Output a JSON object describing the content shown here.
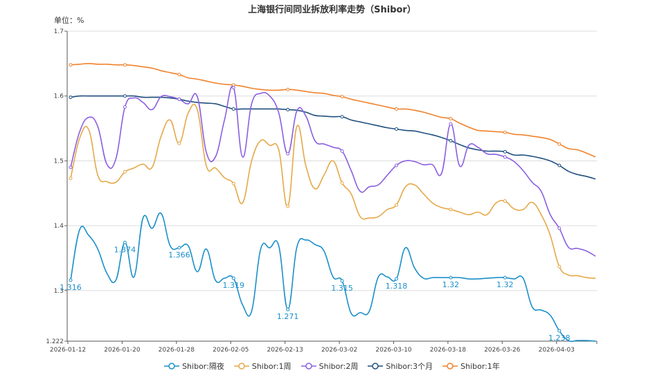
{
  "chart_data": {
    "type": "line",
    "title": "上海银行间同业拆放利率走势（Shibor）",
    "unit_label": "单位：%",
    "xlabel": "",
    "ylabel": "",
    "ylim": [
      1.222,
      1.7
    ],
    "y_ticks": [
      "1.222",
      "1.3",
      "1.4",
      "1.5",
      "1.6",
      "1.7"
    ],
    "grid": true,
    "legend_position": "bottom",
    "x": [
      "2026-01-12",
      "2026-01-13",
      "2026-01-14",
      "2026-01-15",
      "2026-01-16",
      "2026-01-19",
      "2026-01-20",
      "2026-01-21",
      "2026-01-22",
      "2026-01-23",
      "2026-01-26",
      "2026-01-27",
      "2026-01-28",
      "2026-01-29",
      "2026-01-30",
      "2026-02-02",
      "2026-02-03",
      "2026-02-04",
      "2026-02-05",
      "2026-02-06",
      "2026-02-09",
      "2026-02-10",
      "2026-02-11",
      "2026-02-12",
      "2026-02-13",
      "2026-02-14",
      "2026-02-24",
      "2026-02-25",
      "2026-02-26",
      "2026-02-27",
      "2026-03-02",
      "2026-03-03",
      "2026-03-04",
      "2026-03-05",
      "2026-03-06",
      "2026-03-09",
      "2026-03-10",
      "2026-03-11",
      "2026-03-12",
      "2026-03-13",
      "2026-03-16",
      "2026-03-17",
      "2026-03-18",
      "2026-03-19",
      "2026-03-20",
      "2026-03-23",
      "2026-03-24",
      "2026-03-25",
      "2026-03-26",
      "2026-03-27",
      "2026-03-30",
      "2026-03-31",
      "2026-04-01",
      "2026-04-02",
      "2026-04-03",
      "2026-04-07",
      "2026-04-08",
      "2026-04-09",
      "2026-04-10"
    ],
    "x_tick_labels": [
      "2026-01-12",
      "2026-01-20",
      "2026-01-28",
      "2026-02-05",
      "2026-02-13",
      "2026-03-02",
      "2026-03-10",
      "2026-03-18",
      "2026-03-26",
      "2026-04-03"
    ],
    "x_tick_every": 6,
    "series": [
      {
        "name": "Shibor:隔夜",
        "color": "#1a8fc9",
        "show_labels": true,
        "values": [
          1.316,
          1.394,
          1.385,
          1.364,
          1.327,
          1.316,
          1.374,
          1.321,
          1.412,
          1.396,
          1.419,
          1.369,
          1.366,
          1.369,
          1.329,
          1.364,
          1.316,
          1.319,
          1.319,
          1.278,
          1.268,
          1.364,
          1.366,
          1.369,
          1.271,
          1.367,
          1.378,
          1.371,
          1.361,
          1.321,
          1.315,
          1.265,
          1.266,
          1.268,
          1.321,
          1.321,
          1.318,
          1.366,
          1.335,
          1.319,
          1.32,
          1.32,
          1.32,
          1.32,
          1.318,
          1.318,
          1.319,
          1.32,
          1.32,
          1.318,
          1.319,
          1.275,
          1.27,
          1.262,
          1.238,
          1.223,
          1.223,
          1.223,
          1.222
        ]
      },
      {
        "name": "Shibor:1周",
        "color": "#e4a847",
        "values": [
          1.473,
          1.535,
          1.548,
          1.478,
          1.468,
          1.467,
          1.483,
          1.489,
          1.495,
          1.49,
          1.538,
          1.563,
          1.527,
          1.574,
          1.579,
          1.492,
          1.489,
          1.474,
          1.465,
          1.435,
          1.5,
          1.531,
          1.524,
          1.517,
          1.43,
          1.553,
          1.492,
          1.457,
          1.478,
          1.5,
          1.466,
          1.449,
          1.414,
          1.412,
          1.414,
          1.425,
          1.432,
          1.46,
          1.463,
          1.449,
          1.435,
          1.428,
          1.425,
          1.421,
          1.417,
          1.421,
          1.417,
          1.435,
          1.438,
          1.426,
          1.425,
          1.436,
          1.417,
          1.385,
          1.337,
          1.324,
          1.323,
          1.32,
          1.319
        ]
      },
      {
        "name": "Shibor:2周",
        "color": "#8a5ee0",
        "values": [
          1.49,
          1.545,
          1.567,
          1.553,
          1.495,
          1.503,
          1.583,
          1.597,
          1.59,
          1.579,
          1.599,
          1.599,
          1.595,
          1.588,
          1.599,
          1.513,
          1.506,
          1.563,
          1.613,
          1.506,
          1.588,
          1.604,
          1.6,
          1.574,
          1.511,
          1.577,
          1.569,
          1.531,
          1.526,
          1.521,
          1.515,
          1.485,
          1.453,
          1.46,
          1.463,
          1.478,
          1.493,
          1.5,
          1.499,
          1.494,
          1.494,
          1.481,
          1.557,
          1.492,
          1.524,
          1.521,
          1.511,
          1.51,
          1.506,
          1.499,
          1.485,
          1.467,
          1.453,
          1.417,
          1.396,
          1.367,
          1.365,
          1.361,
          1.353
        ]
      },
      {
        "name": "Shibor:3个月",
        "color": "#1f4f7e",
        "values": [
          1.598,
          1.6,
          1.6,
          1.6,
          1.6,
          1.6,
          1.6,
          1.6,
          1.598,
          1.598,
          1.598,
          1.597,
          1.595,
          1.592,
          1.59,
          1.589,
          1.588,
          1.584,
          1.58,
          1.58,
          1.58,
          1.58,
          1.58,
          1.58,
          1.579,
          1.578,
          1.575,
          1.57,
          1.569,
          1.568,
          1.568,
          1.563,
          1.56,
          1.557,
          1.554,
          1.551,
          1.549,
          1.547,
          1.546,
          1.543,
          1.54,
          1.536,
          1.531,
          1.525,
          1.52,
          1.517,
          1.515,
          1.515,
          1.514,
          1.509,
          1.509,
          1.507,
          1.504,
          1.5,
          1.493,
          1.484,
          1.479,
          1.476,
          1.472
        ]
      },
      {
        "name": "Shibor:1年",
        "color": "#f0822c",
        "values": [
          1.648,
          1.649,
          1.65,
          1.649,
          1.649,
          1.648,
          1.648,
          1.647,
          1.645,
          1.643,
          1.639,
          1.636,
          1.633,
          1.628,
          1.626,
          1.623,
          1.62,
          1.618,
          1.617,
          1.615,
          1.612,
          1.61,
          1.609,
          1.609,
          1.61,
          1.609,
          1.607,
          1.605,
          1.604,
          1.601,
          1.599,
          1.595,
          1.592,
          1.589,
          1.586,
          1.583,
          1.58,
          1.58,
          1.578,
          1.575,
          1.571,
          1.567,
          1.565,
          1.558,
          1.552,
          1.547,
          1.546,
          1.545,
          1.544,
          1.541,
          1.54,
          1.538,
          1.536,
          1.533,
          1.526,
          1.519,
          1.517,
          1.512,
          1.506
        ]
      }
    ]
  }
}
